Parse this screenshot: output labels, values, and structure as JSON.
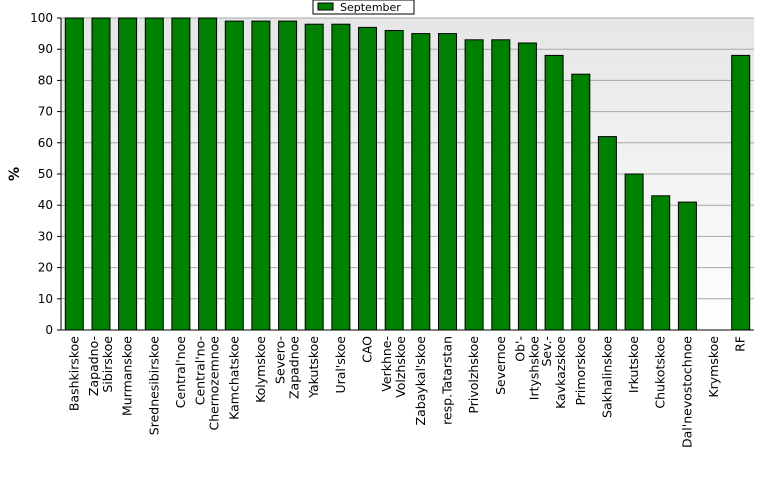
{
  "chart_data": {
    "type": "bar",
    "title": "",
    "xlabel": "",
    "ylabel": "%",
    "ylim": [
      0,
      100
    ],
    "yticks": [
      0,
      10,
      20,
      30,
      40,
      50,
      60,
      70,
      80,
      90,
      100
    ],
    "grid": true,
    "legend_position": "top-center",
    "categories": [
      "Bashkirskoe",
      "Zapadno-Sibirskoe",
      "Murmanskoe",
      "Srednesibirskoe",
      "Central'noe",
      "Central'no-Chernozemnoe",
      "Kamchatskoe",
      "Kolymskoe",
      "Severo-Zapadnoe",
      "Yakutskoe",
      "Ural'skoe",
      "CAO",
      "Verkhne-Volzhskoe",
      "Zabaykal'skoe",
      "resp.Tatarstan",
      "Privolzhskoe",
      "Severnoe",
      "Ob'-Irtyshskoe",
      "Sev.-Kavkazskoe",
      "Primorskoe",
      "Sakhalinskoe",
      "Irkutskoe",
      "Chukotskoe",
      "Dal'nevostochnoe",
      "Krymskoe",
      "RF"
    ],
    "series": [
      {
        "name": "September",
        "color": "#008000",
        "values": [
          100,
          100,
          100,
          100,
          100,
          100,
          99,
          99,
          99,
          98,
          98,
          97,
          96,
          95,
          95,
          93,
          93,
          92,
          88,
          82,
          62,
          50,
          43,
          41,
          null,
          88
        ]
      }
    ]
  }
}
